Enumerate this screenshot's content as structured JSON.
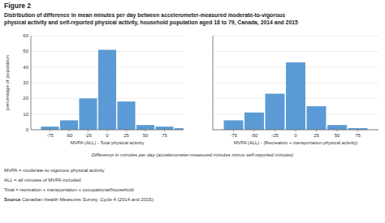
{
  "chart_data": [
    {
      "type": "bar",
      "title": "Figure 2",
      "subtitle": "Distribution of difference in mean minutes per day between accelerometer-measured moderate-to-vigorous\nphysical activity and self-reported physical activity, household population aged 18 to 79, Canada, 2014 and 2015",
      "ylabel": "percentage of population",
      "xlabel": "MVPA (ALL) - Total physical activity",
      "x": [
        -75,
        -50,
        -25,
        0,
        25,
        50,
        75,
        100
      ],
      "values": [
        2,
        6,
        20,
        51,
        18,
        3,
        2,
        1
      ],
      "color": "#5b9bd5",
      "xlim": [
        -100,
        100
      ],
      "xticks": [
        -75,
        -50,
        -25,
        0,
        25,
        50,
        75
      ],
      "ylim": [
        0,
        60
      ],
      "yticks": [
        0,
        10,
        20,
        30,
        40,
        50,
        60
      ],
      "grid": true,
      "annotations": [
        "Difference in minutes per day (accelerometer-measured minutes minus self-reported minutes)",
        "MVPA = moderate-to-vigorous physical activity",
        "ALL = all minutes of MVPA included",
        "Total = recreation + transportation + occupational/household",
        "Source",
        " Canadian Health Measures Survey, Cycle 4 (2014 and 2015)."
      ]
    },
    {
      "type": "bar",
      "xlabel": "MVPA (ALL) - (Recreation + transportation physical activity)",
      "x": [
        -75,
        -50,
        -25,
        0,
        25,
        50,
        75
      ],
      "values": [
        6,
        11,
        23,
        43,
        15,
        3,
        1
      ],
      "color": "#5b9bd5",
      "xlim": [
        -100,
        100
      ],
      "xticks": [
        -75,
        -50,
        -25,
        0,
        25,
        50,
        75
      ],
      "ylim": [
        0,
        60
      ],
      "yticks": [
        0,
        10,
        20,
        30,
        40,
        50,
        60
      ],
      "grid": true,
      "tick_labels": "x"
    }
  ]
}
